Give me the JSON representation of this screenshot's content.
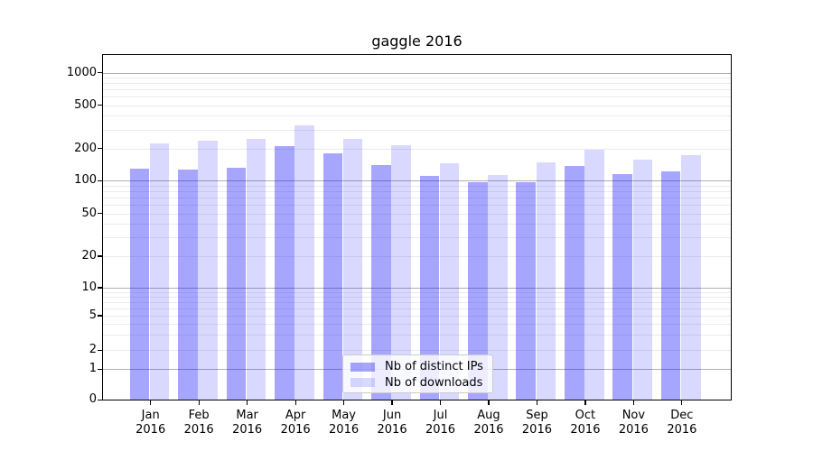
{
  "figure": {
    "title": "gaggle 2016"
  },
  "chart_data": {
    "type": "bar",
    "title": "gaggle 2016",
    "x_categories": [
      "Jan",
      "Feb",
      "Mar",
      "Apr",
      "May",
      "Jun",
      "Jul",
      "Aug",
      "Sep",
      "Oct",
      "Nov",
      "Dec"
    ],
    "x_year_line": "2016",
    "series": [
      {
        "name": "Nb of distinct IPs",
        "values": [
          130,
          128,
          133,
          210,
          180,
          140,
          110,
          96,
          97,
          138,
          116,
          123
        ]
      },
      {
        "name": "Nb of downloads",
        "values": [
          222,
          235,
          248,
          327,
          244,
          216,
          147,
          114,
          148,
          195,
          158,
          173
        ]
      }
    ],
    "yscale": "log-with-zero",
    "ylim": [
      0,
      1500
    ],
    "ytick_values": [
      0,
      1,
      2,
      5,
      10,
      20,
      50,
      100,
      200,
      500,
      1000
    ],
    "ytick_labels": [
      "0",
      "1",
      "2",
      "5",
      "10",
      "20",
      "50",
      "100",
      "200",
      "500",
      "1000"
    ],
    "grid": "horizontal, major and minor log lines",
    "legend_position": "inside lower-center"
  },
  "legend": {
    "items": [
      {
        "label": "Nb of distinct IPs",
        "color": "rgba(0,0,255,0.35)"
      },
      {
        "label": "Nb of downloads",
        "color": "rgba(0,0,255,0.15)"
      }
    ]
  },
  "colors": {
    "bar_ips": "rgba(0,0,255,0.35)",
    "bar_downloads": "rgba(0,0,255,0.15)",
    "grid_major": "#b0b0b0",
    "grid_minor": "#ebebeb",
    "spine": "#000000",
    "legend_border": "#cccccc",
    "legend_bg": "rgba(255,255,255,0.8)"
  }
}
